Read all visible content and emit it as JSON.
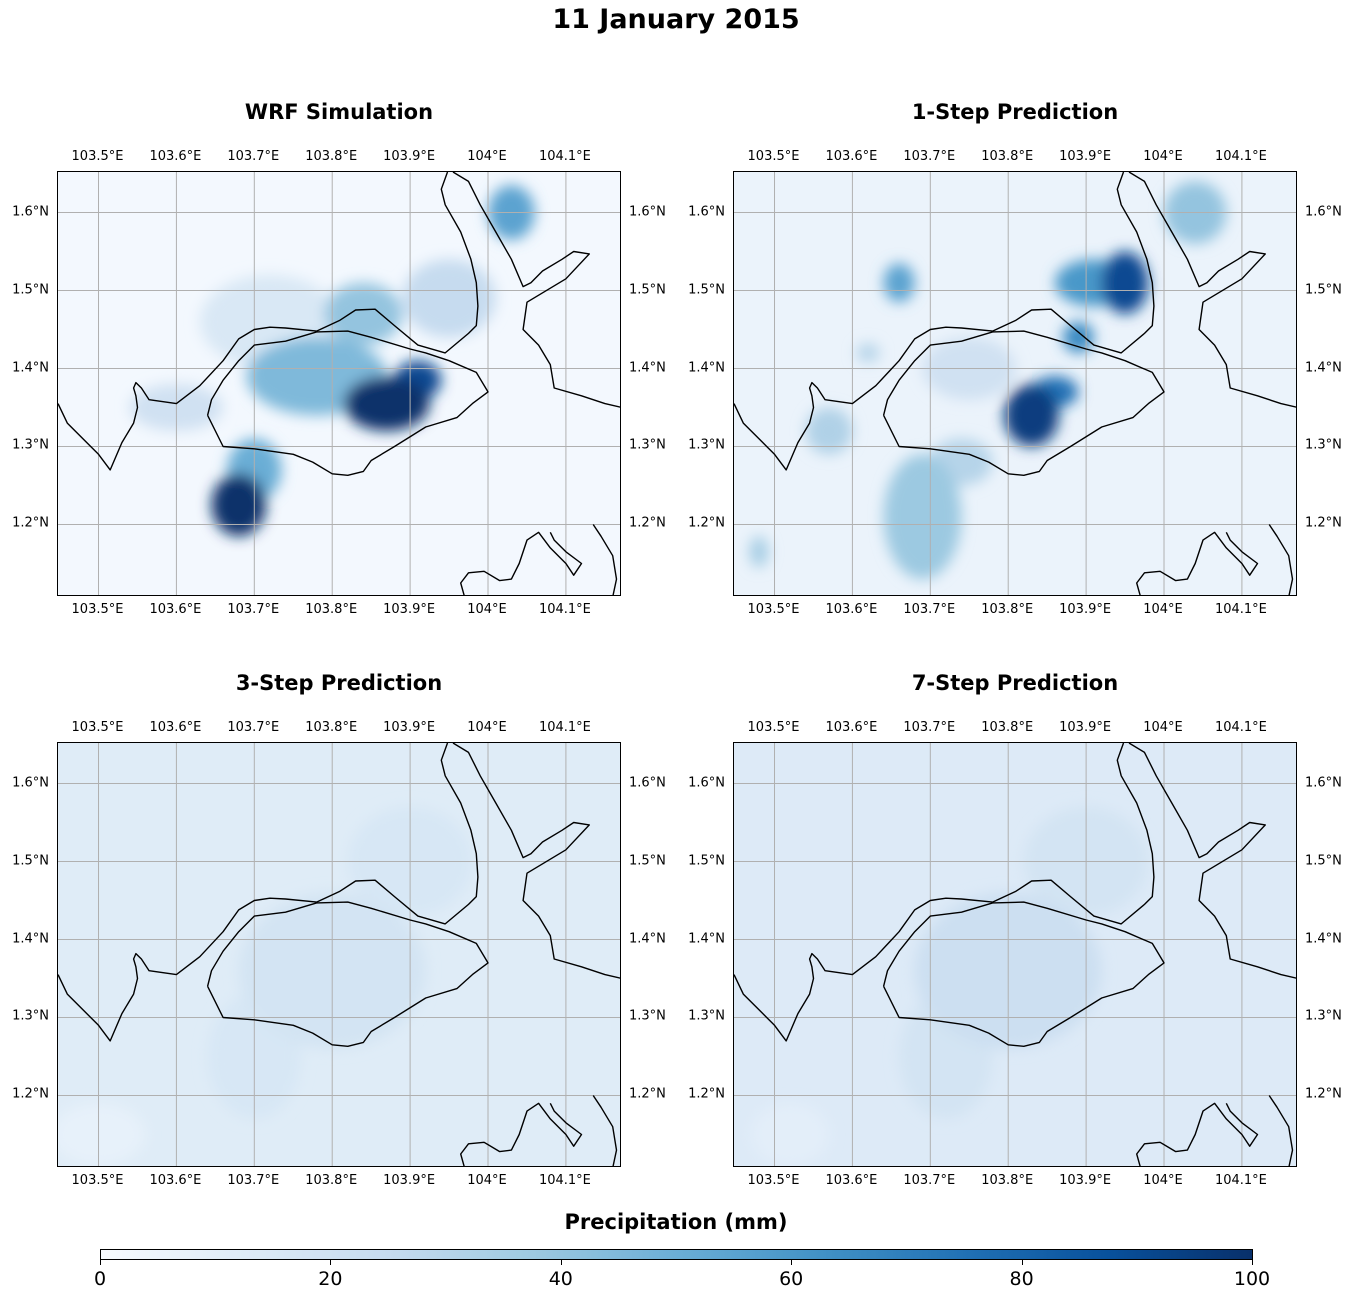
{
  "figure": {
    "title": "11 January 2015"
  },
  "map": {
    "lon_range": [
      103.448,
      104.172
    ],
    "lat_range": [
      1.107,
      1.652
    ],
    "lon_ticks": [
      103.5,
      103.6,
      103.7,
      103.8,
      103.9,
      104.0,
      104.1
    ],
    "lon_tick_labels": [
      "103.5°E",
      "103.6°E",
      "103.7°E",
      "103.8°E",
      "103.9°E",
      "104°E",
      "104.1°E"
    ],
    "lat_ticks": [
      1.6,
      1.5,
      1.4,
      1.3,
      1.2
    ],
    "lat_tick_labels": [
      "1.6°N",
      "1.5°N",
      "1.4°N",
      "1.3°N",
      "1.2°N"
    ],
    "gridlines": true,
    "coastline_color": "#000000",
    "grid_color": "#b0b0b0"
  },
  "panels": [
    {
      "title": "WRF Simulation",
      "background_value": 2,
      "blobs": [
        {
          "lon": 103.87,
          "lat": 1.355,
          "rlon": 0.055,
          "rlat": 0.035,
          "value": 100
        },
        {
          "lon": 103.91,
          "lat": 1.385,
          "rlon": 0.03,
          "rlat": 0.025,
          "value": 90
        },
        {
          "lon": 103.68,
          "lat": 1.225,
          "rlon": 0.035,
          "rlat": 0.04,
          "value": 100
        },
        {
          "lon": 103.7,
          "lat": 1.27,
          "rlon": 0.035,
          "rlat": 0.04,
          "value": 50
        },
        {
          "lon": 103.78,
          "lat": 1.39,
          "rlon": 0.09,
          "rlat": 0.05,
          "value": 45
        },
        {
          "lon": 103.84,
          "lat": 1.47,
          "rlon": 0.05,
          "rlat": 0.04,
          "value": 40
        },
        {
          "lon": 104.03,
          "lat": 1.6,
          "rlon": 0.03,
          "rlat": 0.035,
          "value": 55
        },
        {
          "lon": 103.95,
          "lat": 1.49,
          "rlon": 0.06,
          "rlat": 0.05,
          "value": 25
        },
        {
          "lon": 103.72,
          "lat": 1.46,
          "rlon": 0.09,
          "rlat": 0.06,
          "value": 15
        },
        {
          "lon": 103.6,
          "lat": 1.35,
          "rlon": 0.06,
          "rlat": 0.03,
          "value": 20
        }
      ]
    },
    {
      "title": "1-Step Prediction",
      "background_value": 6,
      "blobs": [
        {
          "lon": 103.83,
          "lat": 1.34,
          "rlon": 0.035,
          "rlat": 0.04,
          "value": 95
        },
        {
          "lon": 103.86,
          "lat": 1.37,
          "rlon": 0.03,
          "rlat": 0.02,
          "value": 75
        },
        {
          "lon": 103.95,
          "lat": 1.51,
          "rlon": 0.03,
          "rlat": 0.04,
          "value": 90
        },
        {
          "lon": 103.91,
          "lat": 1.51,
          "rlon": 0.05,
          "rlat": 0.03,
          "value": 60
        },
        {
          "lon": 103.89,
          "lat": 1.44,
          "rlon": 0.02,
          "rlat": 0.02,
          "value": 65
        },
        {
          "lon": 103.66,
          "lat": 1.51,
          "rlon": 0.02,
          "rlat": 0.025,
          "value": 55
        },
        {
          "lon": 104.04,
          "lat": 1.6,
          "rlon": 0.04,
          "rlat": 0.04,
          "value": 40
        },
        {
          "lon": 103.69,
          "lat": 1.21,
          "rlon": 0.05,
          "rlat": 0.08,
          "value": 38
        },
        {
          "lon": 103.74,
          "lat": 1.28,
          "rlon": 0.04,
          "rlat": 0.03,
          "value": 30
        },
        {
          "lon": 103.57,
          "lat": 1.32,
          "rlon": 0.03,
          "rlat": 0.03,
          "value": 32
        },
        {
          "lon": 103.48,
          "lat": 1.165,
          "rlon": 0.012,
          "rlat": 0.02,
          "value": 35
        },
        {
          "lon": 103.62,
          "lat": 1.42,
          "rlon": 0.015,
          "rlat": 0.012,
          "value": 30
        },
        {
          "lon": 103.75,
          "lat": 1.4,
          "rlon": 0.06,
          "rlat": 0.04,
          "value": 20
        }
      ]
    },
    {
      "title": "3-Step Prediction",
      "background_value": 12,
      "blobs": [
        {
          "lon": 103.8,
          "lat": 1.36,
          "rlon": 0.12,
          "rlat": 0.1,
          "value": 18
        },
        {
          "lon": 103.9,
          "lat": 1.5,
          "rlon": 0.08,
          "rlat": 0.07,
          "value": 16
        },
        {
          "lon": 103.7,
          "lat": 1.25,
          "rlon": 0.06,
          "rlat": 0.08,
          "value": 16
        },
        {
          "lon": 103.5,
          "lat": 1.15,
          "rlon": 0.06,
          "rlat": 0.04,
          "value": 8
        }
      ]
    },
    {
      "title": "7-Step Prediction",
      "background_value": 13,
      "blobs": [
        {
          "lon": 103.8,
          "lat": 1.36,
          "rlon": 0.12,
          "rlat": 0.1,
          "value": 22
        },
        {
          "lon": 103.9,
          "lat": 1.5,
          "rlon": 0.08,
          "rlat": 0.07,
          "value": 18
        },
        {
          "lon": 103.72,
          "lat": 1.25,
          "rlon": 0.06,
          "rlat": 0.08,
          "value": 18
        },
        {
          "lon": 103.52,
          "lat": 1.15,
          "rlon": 0.05,
          "rlat": 0.04,
          "value": 10
        }
      ]
    }
  ],
  "coastlines": {
    "singapore": [
      [
        103.64,
        1.34
      ],
      [
        103.66,
        1.3
      ],
      [
        103.7,
        1.297
      ],
      [
        103.75,
        1.29
      ],
      [
        103.775,
        1.28
      ],
      [
        103.8,
        1.265
      ],
      [
        103.82,
        1.263
      ],
      [
        103.84,
        1.268
      ],
      [
        103.85,
        1.282
      ],
      [
        103.88,
        1.3
      ],
      [
        103.92,
        1.325
      ],
      [
        103.96,
        1.337
      ],
      [
        103.98,
        1.355
      ],
      [
        104.0,
        1.37
      ],
      [
        103.985,
        1.395
      ],
      [
        103.95,
        1.41
      ],
      [
        103.92,
        1.42
      ],
      [
        103.9,
        1.425
      ],
      [
        103.85,
        1.44
      ],
      [
        103.82,
        1.448
      ],
      [
        103.78,
        1.447
      ],
      [
        103.74,
        1.435
      ],
      [
        103.7,
        1.43
      ],
      [
        103.68,
        1.41
      ],
      [
        103.66,
        1.385
      ],
      [
        103.645,
        1.36
      ],
      [
        103.64,
        1.34
      ]
    ],
    "johor": [
      [
        103.448,
        1.355
      ],
      [
        103.46,
        1.33
      ],
      [
        103.49,
        1.3
      ],
      [
        103.5,
        1.29
      ],
      [
        103.515,
        1.27
      ],
      [
        103.53,
        1.305
      ],
      [
        103.545,
        1.33
      ],
      [
        103.55,
        1.35
      ],
      [
        103.548,
        1.365
      ],
      [
        103.545,
        1.375
      ],
      [
        103.548,
        1.382
      ],
      [
        103.555,
        1.375
      ],
      [
        103.565,
        1.36
      ],
      [
        103.6,
        1.355
      ],
      [
        103.63,
        1.378
      ],
      [
        103.66,
        1.41
      ],
      [
        103.68,
        1.438
      ],
      [
        103.7,
        1.45
      ],
      [
        103.72,
        1.453
      ],
      [
        103.74,
        1.452
      ],
      [
        103.78,
        1.448
      ],
      [
        103.81,
        1.462
      ],
      [
        103.83,
        1.475
      ],
      [
        103.855,
        1.476
      ],
      [
        103.88,
        1.455
      ],
      [
        103.91,
        1.43
      ],
      [
        103.945,
        1.42
      ],
      [
        103.975,
        1.445
      ],
      [
        103.985,
        1.455
      ],
      [
        103.987,
        1.48
      ],
      [
        103.985,
        1.51
      ],
      [
        103.978,
        1.54
      ],
      [
        103.965,
        1.575
      ],
      [
        103.945,
        1.61
      ],
      [
        103.94,
        1.63
      ],
      [
        103.948,
        1.652
      ]
    ],
    "johor_east": [
      [
        103.955,
        1.652
      ],
      [
        103.975,
        1.64
      ],
      [
        103.99,
        1.61
      ],
      [
        104.01,
        1.575
      ],
      [
        104.03,
        1.54
      ],
      [
        104.045,
        1.505
      ],
      [
        104.055,
        1.51
      ],
      [
        104.07,
        1.525
      ],
      [
        104.095,
        1.54
      ],
      [
        104.11,
        1.55
      ],
      [
        104.13,
        1.547
      ],
      [
        104.1,
        1.515
      ],
      [
        104.05,
        1.485
      ],
      [
        104.045,
        1.45
      ],
      [
        104.065,
        1.43
      ],
      [
        104.08,
        1.405
      ],
      [
        104.085,
        1.375
      ],
      [
        104.12,
        1.365
      ],
      [
        104.15,
        1.355
      ],
      [
        104.172,
        1.35
      ]
    ],
    "batam": [
      [
        103.97,
        1.107
      ],
      [
        103.965,
        1.125
      ],
      [
        103.975,
        1.138
      ],
      [
        103.995,
        1.14
      ],
      [
        104.015,
        1.128
      ],
      [
        104.03,
        1.13
      ],
      [
        104.04,
        1.15
      ],
      [
        104.05,
        1.18
      ],
      [
        104.065,
        1.19
      ],
      [
        104.08,
        1.17
      ],
      [
        104.1,
        1.15
      ],
      [
        104.11,
        1.135
      ],
      [
        104.12,
        1.15
      ],
      [
        104.1,
        1.165
      ],
      [
        104.085,
        1.18
      ],
      [
        104.08,
        1.19
      ]
    ],
    "bintan": [
      [
        104.135,
        1.2
      ],
      [
        104.145,
        1.185
      ],
      [
        104.16,
        1.16
      ],
      [
        104.165,
        1.13
      ],
      [
        104.16,
        1.107
      ]
    ]
  },
  "colorbar": {
    "label": "Precipitation (mm)",
    "min": 0,
    "max": 100,
    "tick_values": [
      0,
      20,
      40,
      60,
      80,
      100
    ],
    "tick_labels": [
      "0",
      "20",
      "40",
      "60",
      "80",
      "100"
    ],
    "colormap": [
      "#f7fbff",
      "#deebf7",
      "#c6dbef",
      "#9ecae1",
      "#6baed6",
      "#4292c6",
      "#2171b5",
      "#08519c",
      "#08306b"
    ]
  }
}
